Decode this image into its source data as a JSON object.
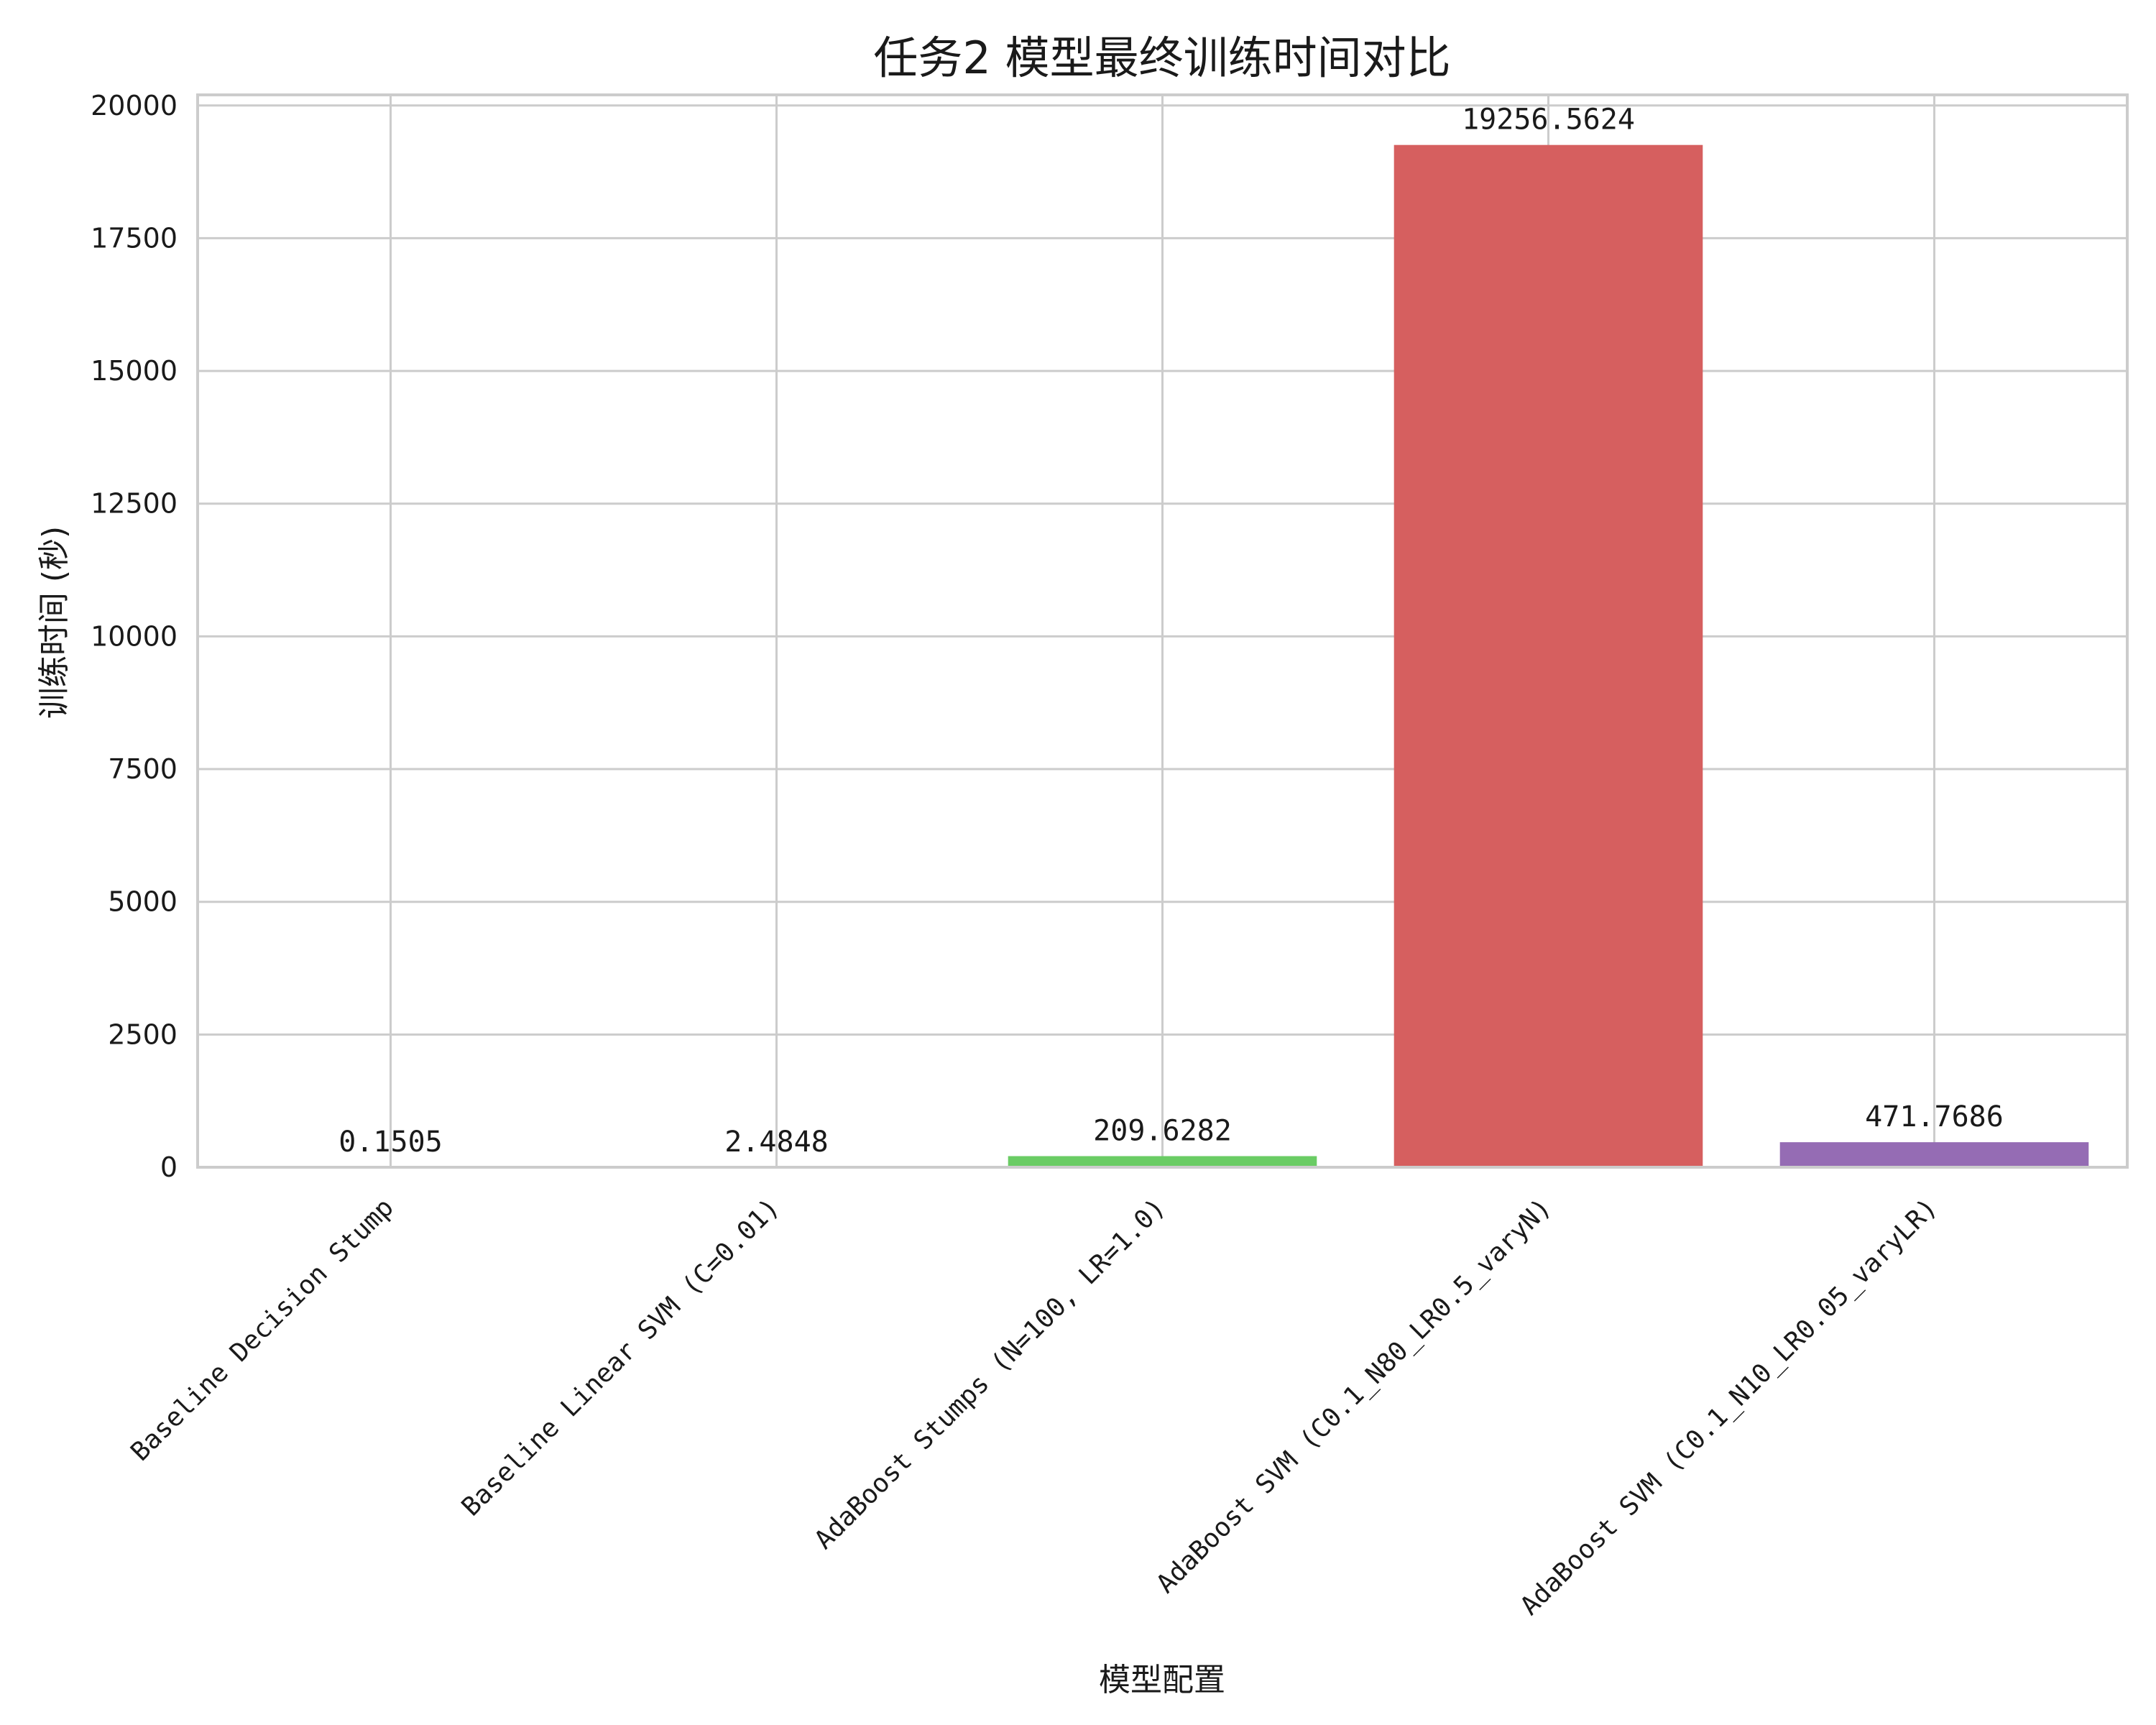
{
  "chart_data": {
    "type": "bar",
    "title": "任务2 模型最终训练时间对比",
    "xlabel": "模型配置",
    "ylabel": "训练时间 (秒)",
    "categories": [
      "Baseline Decision Stump",
      "Baseline Linear SVM (C=0.01)",
      "AdaBoost Stumps (N=100, LR=1.0)",
      "AdaBoost SVM (C0.1_N80_LR0.5_varyN)",
      "AdaBoost SVM (C0.1_N10_LR0.05_varyLR)"
    ],
    "values": [
      0.1505,
      2.4848,
      209.6282,
      19256.5624,
      471.7686
    ],
    "value_labels": [
      "0.1505",
      "2.4848",
      "209.6282",
      "19256.5624",
      "471.7686"
    ],
    "colors": [
      "#4c72b0",
      "#dd8452",
      "#6acc64",
      "#d65f5f",
      "#956cb4"
    ],
    "ylim": [
      0,
      20200
    ],
    "yticks": [
      0,
      2500,
      5000,
      7500,
      10000,
      12500,
      15000,
      17500,
      20000
    ],
    "ytick_labels": [
      "0",
      "2500",
      "5000",
      "7500",
      "10000",
      "12500",
      "15000",
      "17500",
      "20000"
    ],
    "grid": true,
    "grid_color": "#cccccc",
    "frame_color": "#cccccc",
    "x_tick_rotation": -45
  }
}
